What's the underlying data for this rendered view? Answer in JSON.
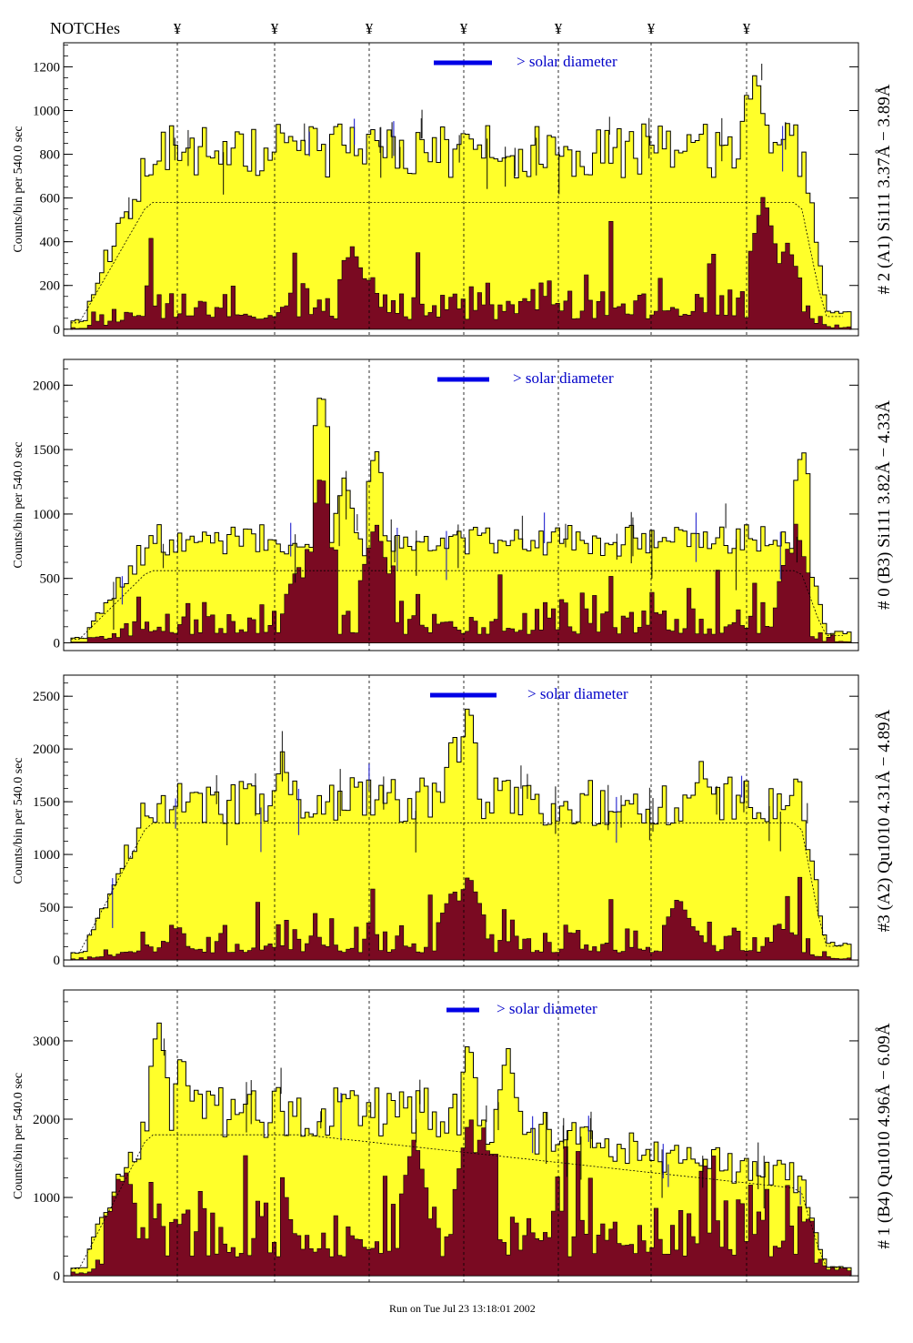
{
  "header": {
    "notches_label": "NOTCHes",
    "notch_marker": "¥",
    "notch_positions": [
      195,
      302,
      406,
      510,
      614,
      716,
      821
    ]
  },
  "footer": {
    "run_text": "Run on Tue Jul 23 13:18:01 2002"
  },
  "colors": {
    "total_fill": "#ffff2a",
    "sub_fill": "#7a0a22",
    "notch_line": "#000000",
    "annotation_blue": "#0000c8",
    "bar_blue": "#0000e6"
  },
  "chart_data": [
    {
      "type": "area",
      "id": "panel-a1",
      "channel_label": "# 2 (A1) Si111  3.37Å − 3.89Å",
      "ylabel": "Counts/bin per    540.0 sec",
      "solar_label": "> solar diameter",
      "yticks": [
        0,
        200,
        400,
        600,
        800,
        1000,
        1200
      ],
      "ylim": [
        -30,
        1310
      ],
      "grid": false,
      "seed": 11,
      "envelope_level": 840,
      "dashed_level": 580,
      "peaks": [
        {
          "x": 0.88,
          "v": 1200
        },
        {
          "x": 0.87,
          "v": 1120
        },
        {
          "x": 0.31,
          "v": 960
        },
        {
          "x": 0.51,
          "v": 930
        }
      ],
      "sub_level": 150,
      "sub_peaks": [
        {
          "x": 0.89,
          "v": 620
        },
        {
          "x": 0.36,
          "v": 380
        },
        {
          "x": 0.92,
          "v": 400
        }
      ]
    },
    {
      "type": "area",
      "id": "panel-b3",
      "channel_label": "# 0 (B3) Si111  3.82Å − 4.33Å",
      "ylabel": "Counts/bin per    540.0 sec",
      "solar_label": "> solar diameter",
      "yticks": [
        0,
        500,
        1000,
        1500,
        2000
      ],
      "ylim": [
        -60,
        2200
      ],
      "grid": false,
      "seed": 23,
      "envelope_level": 820,
      "dashed_level": 560,
      "peaks": [
        {
          "x": 0.32,
          "v": 2000
        },
        {
          "x": 0.39,
          "v": 1530
        },
        {
          "x": 0.94,
          "v": 1530
        },
        {
          "x": 0.35,
          "v": 1300
        }
      ],
      "sub_level": 220,
      "sub_peaks": [
        {
          "x": 0.32,
          "v": 1350
        },
        {
          "x": 0.39,
          "v": 950
        },
        {
          "x": 0.93,
          "v": 950
        },
        {
          "x": 0.29,
          "v": 600
        }
      ]
    },
    {
      "type": "area",
      "id": "panel-a2",
      "channel_label": "#3 (A2) Qu1010  4.31Å − 4.89Å",
      "ylabel": "Counts/bin per    540.0 sec",
      "solar_label": "> solar diameter",
      "yticks": [
        0,
        500,
        1000,
        1500,
        2000,
        2500
      ],
      "ylim": [
        -60,
        2700
      ],
      "grid": false,
      "seed": 37,
      "envelope_level": 1550,
      "dashed_level": 1300,
      "peaks": [
        {
          "x": 0.51,
          "v": 2480
        },
        {
          "x": 0.49,
          "v": 2200
        },
        {
          "x": 0.27,
          "v": 1980
        },
        {
          "x": 0.81,
          "v": 1900
        }
      ],
      "sub_level": 230,
      "sub_peaks": [
        {
          "x": 0.51,
          "v": 820
        },
        {
          "x": 0.49,
          "v": 680
        },
        {
          "x": 0.78,
          "v": 600
        }
      ]
    },
    {
      "type": "area",
      "id": "panel-b4",
      "channel_label": "# 1 (B4) Qu1010 4.96Å − 6.09Å",
      "ylabel": "Counts/bin per    540.0 sec",
      "solar_label": "> solar diameter",
      "yticks": [
        0,
        1000,
        2000,
        3000
      ],
      "ylim": [
        -80,
        3650
      ],
      "grid": false,
      "seed": 51,
      "envelope_level": 2150,
      "envelope_tail": 1250,
      "dashed_level": 1800,
      "dashed_tail": 1100,
      "peaks": [
        {
          "x": 0.11,
          "v": 3300
        },
        {
          "x": 0.51,
          "v": 3050
        },
        {
          "x": 0.56,
          "v": 2950
        },
        {
          "x": 0.14,
          "v": 2900
        }
      ],
      "sub_level": 800,
      "sub_peaks": [
        {
          "x": 0.51,
          "v": 2000
        },
        {
          "x": 0.53,
          "v": 2050
        },
        {
          "x": 0.44,
          "v": 1800
        },
        {
          "x": 0.06,
          "v": 1800
        }
      ]
    }
  ]
}
